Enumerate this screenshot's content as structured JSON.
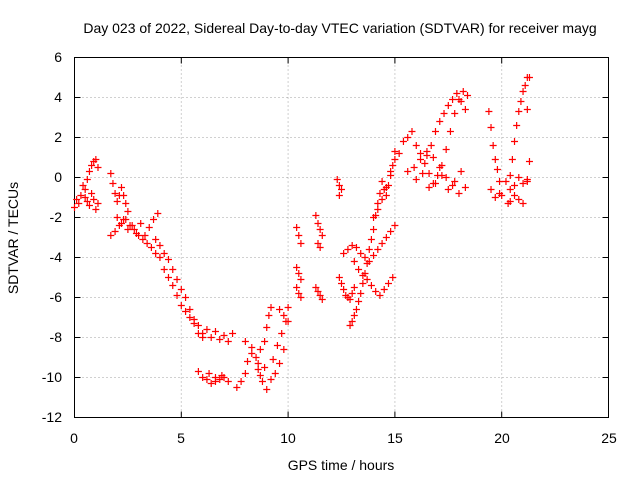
{
  "chart_data": {
    "type": "scatter",
    "title": "Day 023 of 2022, Sidereal Day-to-day VTEC variation (SDTVAR) for receiver mayg",
    "xlabel": "GPS time / hours",
    "ylabel": "SDTVAR / TECUs",
    "xlim": [
      0,
      25
    ],
    "ylim": [
      -12,
      6
    ],
    "xticks": [
      "0",
      "5",
      "10",
      "15",
      "20",
      "25"
    ],
    "yticks": [
      "-12",
      "-10",
      "-8",
      "-6",
      "-4",
      "-2",
      "0",
      "2",
      "4",
      "6"
    ],
    "grid": true,
    "marker": "plus",
    "color": "#ff0000",
    "series": [
      {
        "name": "SDTVAR",
        "x": [
          0.0,
          0.1,
          0.2,
          0.3,
          0.4,
          0.5,
          0.6,
          0.7,
          0.8,
          0.9,
          1.0,
          1.1,
          0.5,
          0.6,
          0.7,
          0.8,
          0.9,
          1.0,
          1.1,
          1.7,
          1.8,
          1.9,
          2.0,
          2.1,
          2.2,
          2.3,
          2.4,
          2.5,
          1.7,
          1.9,
          2.1,
          2.3,
          2.5,
          2.7,
          2.9,
          3.1,
          3.3,
          3.5,
          3.7,
          3.9,
          2.0,
          2.2,
          2.4,
          2.6,
          2.8,
          3.0,
          3.2,
          3.4,
          3.6,
          3.8,
          4.0,
          4.2,
          4.4,
          4.6,
          4.8,
          5.0,
          5.2,
          5.4,
          5.6,
          5.8,
          6.0,
          3.8,
          4.0,
          4.2,
          4.4,
          4.6,
          4.8,
          5.0,
          5.2,
          5.4,
          5.6,
          5.8,
          6.0,
          6.2,
          6.4,
          6.6,
          6.8,
          7.0,
          7.2,
          7.4,
          5.8,
          6.0,
          6.2,
          6.4,
          6.6,
          6.8,
          7.0,
          7.2,
          6.3,
          6.6,
          6.9,
          7.6,
          7.8,
          8.0,
          8.1,
          8.3,
          8.5,
          8.7,
          8.9,
          9.0,
          9.1,
          9.2,
          8.0,
          8.3,
          8.6,
          8.9,
          9.3,
          9.5,
          9.7,
          9.9,
          8.6,
          8.7,
          8.8,
          9.0,
          9.2,
          9.4,
          9.6,
          9.8,
          10.0,
          9.6,
          9.8,
          10.0,
          10.4,
          10.5,
          10.6,
          10.4,
          10.5,
          10.6,
          10.4,
          10.5,
          10.6,
          11.3,
          11.4,
          11.5,
          11.6,
          11.4,
          11.5,
          11.3,
          11.4,
          11.5,
          11.6,
          12.3,
          12.4,
          12.5,
          12.4,
          12.4,
          12.5,
          12.6,
          12.7,
          12.8,
          12.9,
          13.0,
          13.1,
          12.6,
          12.8,
          13.0,
          12.9,
          13.0,
          13.1,
          13.2,
          13.3,
          13.4,
          13.5,
          13.6,
          13.7,
          13.8,
          13.9,
          14.0,
          14.1,
          14.2,
          14.3,
          14.4,
          14.5,
          14.6,
          14.7,
          14.8,
          14.9,
          15.0,
          13.1,
          13.3,
          13.5,
          13.7,
          13.9,
          14.1,
          14.3,
          14.5,
          14.7,
          14.9,
          13.2,
          13.4,
          13.6,
          13.8,
          14.0,
          14.2,
          14.4,
          14.6,
          14.8,
          15.0,
          14.0,
          14.2,
          14.4,
          14.6,
          14.8,
          15.0,
          15.2,
          15.4,
          15.6,
          15.8,
          16.0,
          16.2,
          16.4,
          16.6,
          16.8,
          17.0,
          17.2,
          17.4,
          17.6,
          17.8,
          18.0,
          18.2,
          18.4,
          15.6,
          15.9,
          16.2,
          16.5,
          16.8,
          17.1,
          17.4,
          17.7,
          18.0,
          18.3,
          16.5,
          16.7,
          16.9,
          17.1,
          17.3,
          17.5,
          17.7,
          17.9,
          18.1,
          18.3,
          16.0,
          16.3,
          16.6,
          16.9,
          17.2,
          17.5,
          17.8,
          18.1,
          19.4,
          19.5,
          19.6,
          19.7,
          19.8,
          19.9,
          20.0,
          19.5,
          19.7,
          19.9,
          20.3,
          20.4,
          20.5,
          20.6,
          20.7,
          20.8,
          20.9,
          21.0,
          21.1,
          21.2,
          20.2,
          20.4,
          20.6,
          20.8,
          21.0,
          21.2,
          20.4,
          20.6,
          20.8,
          21.0,
          21.2,
          21.3,
          21.3,
          21.2
        ],
        "y": [
          -1.5,
          -1.1,
          -1.3,
          -0.9,
          -0.4,
          -0.6,
          -0.1,
          0.3,
          0.6,
          0.8,
          0.9,
          0.5,
          -1.0,
          -1.2,
          -1.4,
          -0.8,
          -1.1,
          -1.6,
          -1.3,
          0.2,
          -0.3,
          -0.8,
          -1.2,
          -0.9,
          -0.5,
          -0.9,
          -1.3,
          -1.7,
          -2.9,
          -2.7,
          -2.4,
          -2.1,
          -2.6,
          -2.4,
          -2.8,
          -2.3,
          -2.9,
          -2.5,
          -2.1,
          -1.8,
          -2.0,
          -2.3,
          -2.1,
          -2.4,
          -2.6,
          -2.9,
          -3.1,
          -3.3,
          -3.5,
          -3.8,
          -4.0,
          -4.6,
          -5.0,
          -5.4,
          -5.9,
          -6.4,
          -6.7,
          -7.0,
          -7.3,
          -7.8,
          -8.0,
          -3.1,
          -3.4,
          -3.8,
          -4.1,
          -4.6,
          -5.1,
          -5.6,
          -6.0,
          -6.6,
          -7.1,
          -7.4,
          -7.8,
          -7.6,
          -8.0,
          -7.7,
          -8.1,
          -7.9,
          -8.2,
          -7.8,
          -9.7,
          -10.0,
          -10.1,
          -10.3,
          -10.2,
          -10.1,
          -10.0,
          -10.2,
          -9.8,
          -10.0,
          -9.9,
          -10.5,
          -10.2,
          -9.8,
          -9.2,
          -8.8,
          -9.0,
          -8.6,
          -8.2,
          -7.5,
          -6.9,
          -6.5,
          -8.2,
          -8.5,
          -9.3,
          -9.5,
          -9.1,
          -8.4,
          -7.8,
          -7.2,
          -9.6,
          -9.9,
          -10.2,
          -10.6,
          -10.1,
          -9.8,
          -9.3,
          -8.6,
          -7.2,
          -6.6,
          -6.9,
          -6.5,
          -2.5,
          -2.9,
          -3.3,
          -4.5,
          -4.8,
          -5.1,
          -5.5,
          -5.8,
          -6.0,
          -1.9,
          -2.3,
          -2.6,
          -2.9,
          -3.3,
          -3.5,
          -5.5,
          -5.7,
          -5.9,
          -6.1,
          -0.1,
          -0.4,
          -0.6,
          -0.9,
          -5.0,
          -5.3,
          -5.6,
          -5.9,
          -6.0,
          -6.1,
          -5.8,
          -5.5,
          -3.8,
          -3.6,
          -3.4,
          -7.4,
          -7.2,
          -6.9,
          -6.6,
          -6.2,
          -5.8,
          -5.3,
          -4.8,
          -4.3,
          -3.6,
          -3.1,
          -2.6,
          -1.9,
          -1.3,
          -0.8,
          -0.2,
          -0.6,
          -0.9,
          -0.4,
          0.1,
          0.6,
          1.3,
          -4.2,
          -4.6,
          -4.9,
          -5.1,
          -5.4,
          -5.7,
          -5.9,
          -5.6,
          -5.3,
          -5.0,
          -3.5,
          -3.8,
          -4.0,
          -4.2,
          -3.9,
          -3.6,
          -3.3,
          -3.0,
          -2.7,
          -2.4,
          -2.0,
          -1.6,
          -1.1,
          -0.5,
          0.3,
          0.9,
          1.2,
          1.8,
          2.0,
          2.3,
          1.6,
          1.2,
          0.7,
          0.2,
          -0.3,
          0.1,
          0.6,
          1.4,
          2.3,
          3.2,
          3.9,
          4.3,
          4.1,
          0.3,
          0.5,
          0.9,
          1.3,
          1.0,
          0.5,
          0.0,
          -0.4,
          -0.8,
          -0.5,
          1.1,
          1.6,
          2.3,
          2.8,
          3.2,
          3.6,
          3.9,
          4.2,
          3.8,
          3.4,
          -0.1,
          0.2,
          -0.5,
          -0.3,
          0.1,
          -0.6,
          -0.2,
          0.3,
          3.3,
          2.5,
          1.6,
          0.9,
          0.4,
          -0.2,
          -0.9,
          -0.6,
          -1.0,
          -0.8,
          -1.3,
          -0.6,
          0.9,
          1.8,
          2.6,
          3.3,
          3.8,
          4.3,
          4.6,
          5.0,
          -0.2,
          0.1,
          -0.4,
          0.0,
          -0.3,
          -0.2,
          -1.2,
          -0.9,
          -1.1,
          -1.3,
          3.4,
          0.8,
          5.0,
          -0.1
        ]
      }
    ]
  }
}
